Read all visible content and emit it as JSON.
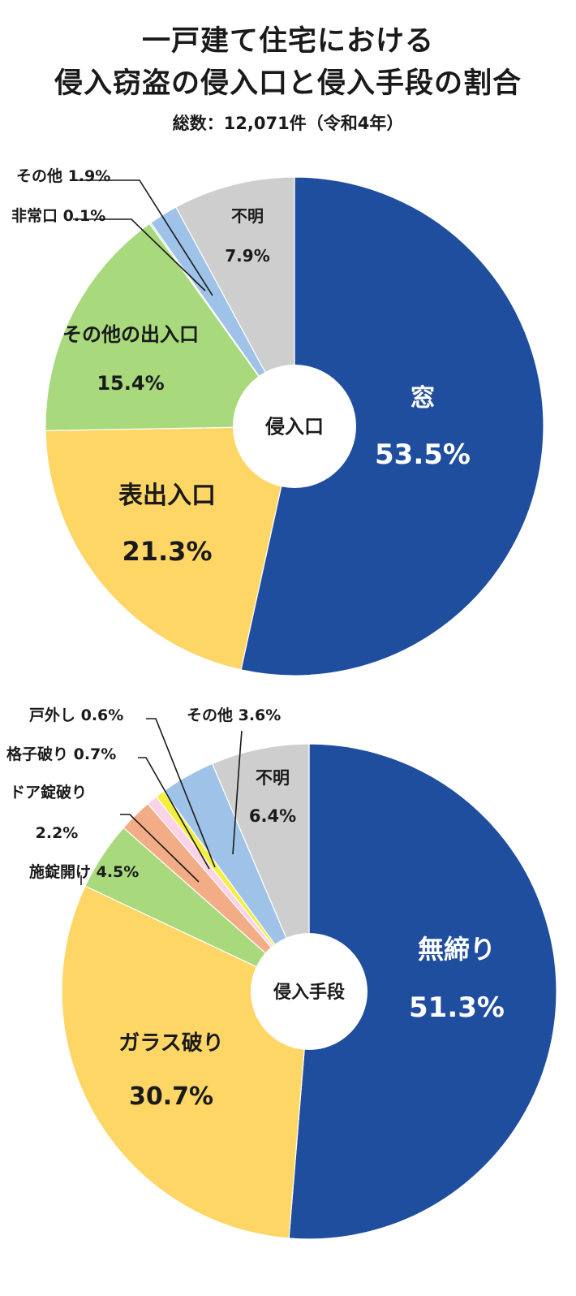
{
  "title_line1": "一戸建て住宅における",
  "title_line2": "侵入窃盗の侵入口と侵入手段の割合",
  "subtitle": "総数：12,071件（令和4年）",
  "chart_data": [
    {
      "type": "pie",
      "center_label": "侵入口",
      "slices": [
        {
          "label": "窓",
          "value": 53.5,
          "value_text": "53.5%",
          "color": "#1f4e9f"
        },
        {
          "label": "表出入口",
          "value": 21.3,
          "value_text": "21.3%",
          "color": "#fdd666"
        },
        {
          "label": "その他の出入口",
          "value": 15.4,
          "value_text": "15.4%",
          "color": "#a8d97c"
        },
        {
          "label": "非常口",
          "value": 0.1,
          "value_text": "0.1%",
          "color": "#bcdcc0"
        },
        {
          "label": "その他",
          "value": 1.9,
          "value_text": "1.9%",
          "color": "#9fc3e8"
        },
        {
          "label": "不明",
          "value": 7.9,
          "value_text": "7.9%",
          "color": "#cfcece"
        }
      ]
    },
    {
      "type": "pie",
      "center_label": "侵入手段",
      "slices": [
        {
          "label": "無締り",
          "value": 51.3,
          "value_text": "51.3%",
          "color": "#1f4e9f"
        },
        {
          "label": "ガラス破り",
          "value": 30.7,
          "value_text": "30.7%",
          "color": "#fdd666"
        },
        {
          "label": "施錠開け",
          "value": 4.5,
          "value_text": "4.5%",
          "color": "#a8d97c"
        },
        {
          "label": "ドア錠破り",
          "value": 2.2,
          "value_text": "2.2%",
          "color": "#f2ad86"
        },
        {
          "label": "格子破り",
          "value": 0.7,
          "value_text": "0.7%",
          "color": "#fbd2e6"
        },
        {
          "label": "戸外し",
          "value": 0.6,
          "value_text": "0.6%",
          "color": "#f4ef3e"
        },
        {
          "label": "その他",
          "value": 3.6,
          "value_text": "3.6%",
          "color": "#9fc3e8"
        },
        {
          "label": "不明",
          "value": 6.4,
          "value_text": "6.4%",
          "color": "#cfcece"
        }
      ]
    }
  ]
}
